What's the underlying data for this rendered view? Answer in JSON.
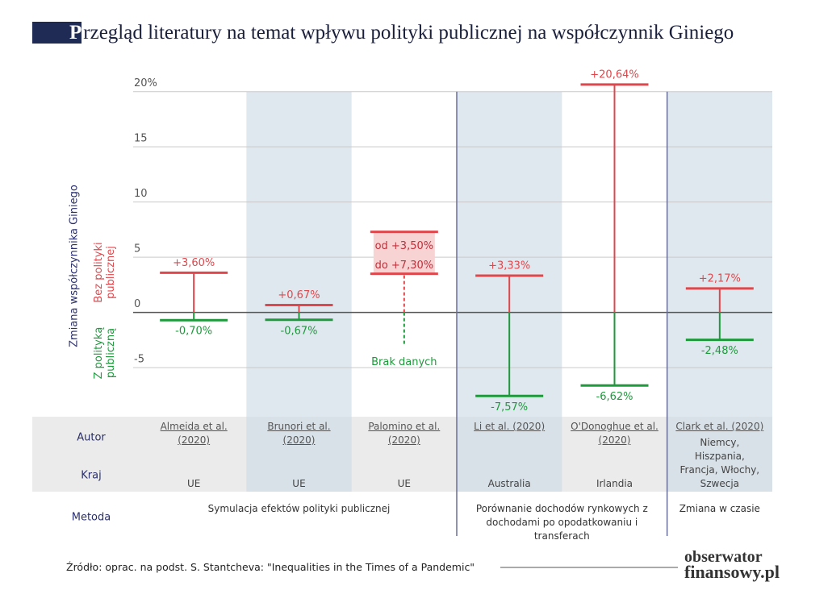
{
  "chart_data": {
    "type": "range",
    "title": "Przegląd literatury na temat wpływu polityki publicznej na współczynnik Giniego",
    "y_label": "Zmiana współczynnika Giniego",
    "categories": [
      "Almeida et al. (2020)",
      "Brunori et al. (2020)",
      "Palomino et al. (2020)",
      "Li et al. (2020)",
      "O'Donoghue et al. (2020)",
      "Clark et al. (2020)"
    ],
    "countries": [
      "UE",
      "UE",
      "UE",
      "Australia",
      "Irlandia",
      "Niemcy, Hiszpania, Francja, Włochy, Szwecja"
    ],
    "methods": [
      "Symulacja efektów polityki publicznej",
      "Symulacja efektów polityki publicznej",
      "Symulacja efektów polityki publicznej",
      "Porównanie dochodów rynkowych z dochodami po opodatkowaniu i transferach",
      "Porównanie dochodów rynkowych z dochodami po opodatkowaniu i transferach",
      "Zmiana w czasie"
    ],
    "row_labels": [
      "Autor",
      "Kraj",
      "Metoda"
    ],
    "series": [
      {
        "name": "Bez polityki publicznej",
        "color": "#e0474c",
        "values": [
          3.6,
          0.67,
          3.5,
          3.33,
          20.64,
          2.17
        ],
        "value_labels": [
          "+3,60%",
          "+0,67%",
          "od +3,50%",
          "+3,33%",
          "+20,64%",
          "+2,17%"
        ],
        "values_high": [
          null,
          null,
          7.3,
          null,
          null,
          null
        ],
        "value_labels_high": [
          null,
          null,
          "do +7,30%",
          null,
          null,
          null
        ]
      },
      {
        "name": "Z polityką publiczną",
        "color": "#1e9a3c",
        "values": [
          -0.7,
          -0.67,
          null,
          -7.57,
          -6.62,
          -2.48
        ],
        "value_labels": [
          "-0,70%",
          "-0,67%",
          "Brak danych",
          "-7,57%",
          "-6,62%",
          "-2,48%"
        ]
      }
    ],
    "ylim": [
      -9.3,
      21
    ],
    "yticks": [
      {
        "value": 20,
        "label": "20%"
      },
      15,
      10,
      5,
      0,
      -5
    ],
    "grid": true,
    "source": "Źródło: oprac. na podst. S. Stantcheva: \"Inequalities in the Times of a Pandemic\"",
    "logo": [
      "obserwator",
      "finansowy.pl"
    ]
  }
}
